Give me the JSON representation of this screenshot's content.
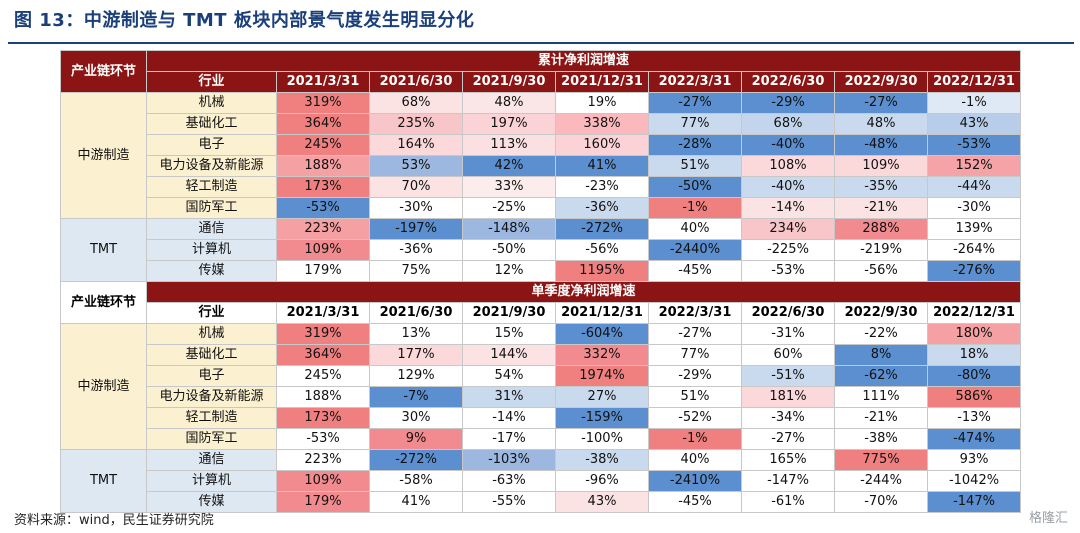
{
  "title": "图 13：中游制造与 TMT 板块内部景气度发生明显分化",
  "source": "资料来源：wind，民生证券研究院",
  "watermark": "格隆汇",
  "colors": {
    "header": "#8b1414",
    "title": "#1a3f7a",
    "mid_group": "#fbf0cf",
    "tmt_group": "#dde8f3"
  },
  "sections": [
    {
      "header": "累计净利润增速",
      "chain_label": "产业链环节",
      "industry_label": "行业",
      "dates": [
        "2021/3/31",
        "2021/6/30",
        "2021/9/30",
        "2021/12/31",
        "2022/3/31",
        "2022/6/30",
        "2022/9/30",
        "2022/12/31"
      ],
      "groups": [
        {
          "name": "中游制造",
          "rows": [
            {
              "industry": "机械",
              "values": [
                "319%",
                "68%",
                "48%",
                "19%",
                "-27%",
                "-29%",
                "-27%",
                "-1%"
              ]
            },
            {
              "industry": "基础化工",
              "values": [
                "364%",
                "235%",
                "197%",
                "338%",
                "77%",
                "68%",
                "48%",
                "43%"
              ]
            },
            {
              "industry": "电子",
              "values": [
                "245%",
                "164%",
                "113%",
                "160%",
                "-28%",
                "-40%",
                "-48%",
                "-53%"
              ]
            },
            {
              "industry": "电力设备及新能源",
              "values": [
                "188%",
                "53%",
                "42%",
                "41%",
                "51%",
                "108%",
                "109%",
                "152%"
              ]
            },
            {
              "industry": "轻工制造",
              "values": [
                "173%",
                "70%",
                "33%",
                "-23%",
                "-50%",
                "-40%",
                "-35%",
                "-44%"
              ]
            },
            {
              "industry": "国防军工",
              "values": [
                "-53%",
                "-30%",
                "-25%",
                "-36%",
                "-1%",
                "-14%",
                "-21%",
                "-30%"
              ]
            }
          ]
        },
        {
          "name": "TMT",
          "rows": [
            {
              "industry": "通信",
              "values": [
                "223%",
                "-197%",
                "-148%",
                "-272%",
                "40%",
                "234%",
                "288%",
                "139%"
              ]
            },
            {
              "industry": "计算机",
              "values": [
                "109%",
                "-36%",
                "-50%",
                "-56%",
                "-2440%",
                "-225%",
                "-219%",
                "-264%"
              ]
            },
            {
              "industry": "传媒",
              "values": [
                "179%",
                "75%",
                "12%",
                "1195%",
                "-45%",
                "-53%",
                "-56%",
                "-276%"
              ]
            }
          ]
        }
      ]
    },
    {
      "header": "单季度净利润增速",
      "chain_label": "产业链环节",
      "industry_label": "行业",
      "dates": [
        "2021/3/31",
        "2021/6/30",
        "2021/9/30",
        "2021/12/31",
        "2022/3/31",
        "2022/6/30",
        "2022/9/30",
        "2022/12/31"
      ],
      "groups": [
        {
          "name": "中游制造",
          "rows": [
            {
              "industry": "机械",
              "values": [
                "319%",
                "13%",
                "15%",
                "-604%",
                "-27%",
                "-31%",
                "-22%",
                "180%"
              ]
            },
            {
              "industry": "基础化工",
              "values": [
                "364%",
                "177%",
                "144%",
                "332%",
                "77%",
                "60%",
                "8%",
                "18%"
              ]
            },
            {
              "industry": "电子",
              "values": [
                "245%",
                "129%",
                "54%",
                "1974%",
                "-29%",
                "-51%",
                "-62%",
                "-80%"
              ]
            },
            {
              "industry": "电力设备及新能源",
              "values": [
                "188%",
                "-7%",
                "31%",
                "27%",
                "51%",
                "181%",
                "111%",
                "586%"
              ]
            },
            {
              "industry": "轻工制造",
              "values": [
                "173%",
                "30%",
                "-14%",
                "-159%",
                "-52%",
                "-34%",
                "-21%",
                "-13%"
              ]
            },
            {
              "industry": "国防军工",
              "values": [
                "-53%",
                "9%",
                "-17%",
                "-100%",
                "-1%",
                "-27%",
                "-38%",
                "-474%"
              ]
            }
          ]
        },
        {
          "name": "TMT",
          "rows": [
            {
              "industry": "通信",
              "values": [
                "223%",
                "-272%",
                "-103%",
                "-38%",
                "40%",
                "165%",
                "775%",
                "93%"
              ]
            },
            {
              "industry": "计算机",
              "values": [
                "109%",
                "-58%",
                "-63%",
                "-96%",
                "-2410%",
                "-147%",
                "-244%",
                "-1042%"
              ]
            },
            {
              "industry": "传媒",
              "values": [
                "179%",
                "41%",
                "-55%",
                "43%",
                "-45%",
                "-61%",
                "-70%",
                "-147%"
              ]
            }
          ]
        }
      ]
    }
  ],
  "cell_colors": [
    [
      [
        "#f08080",
        "#fbe3e4",
        "#fbe6e7",
        "#ffffff",
        "#5b8fd0",
        "#5b8fd0",
        "#5b8fd0",
        "#dfe8f5"
      ],
      [
        "#f08080",
        "#f8c6c9",
        "#fbd3d6",
        "#fbb9bd",
        "#c9daef",
        "#c2d5ec",
        "#c9daef",
        "#b7cde9"
      ],
      [
        "#f08080",
        "#fbd8da",
        "#fbe0e2",
        "#fbd3d6",
        "#5b8fd0",
        "#5b8fd0",
        "#5b8fd0",
        "#5b8fd0"
      ],
      [
        "#f5a0a3",
        "#9db8e0",
        "#5b8fd0",
        "#5b8fd0",
        "#c9daef",
        "#fbd8da",
        "#fbd8da",
        "#f5a3a7"
      ],
      [
        "#f08080",
        "#fbe3e4",
        "#fdecec",
        "#ffffff",
        "#5b8fd0",
        "#c9daef",
        "#c9daef",
        "#c9daef"
      ],
      [
        "#5b8fd0",
        "#ffffff",
        "#ffffff",
        "#c9daef",
        "#f08080",
        "#fbe3e4",
        "#fbe3e4",
        "#ffffff"
      ]
    ],
    [
      [
        "#f08080",
        "#ffffff",
        "#ffffff",
        "#5b8fd0",
        "#ffffff",
        "#ffffff",
        "#ffffff",
        "#f5a0a3"
      ],
      [
        "#f08080",
        "#fbd8da",
        "#fbe3e4",
        "#f28b8f",
        "#ffffff",
        "#ffffff",
        "#5b8fd0",
        "#c9daef"
      ],
      [
        "#ffffff",
        "#ffffff",
        "#ffffff",
        "#f08080",
        "#ffffff",
        "#c9daef",
        "#5b8fd0",
        "#5b8fd0"
      ],
      [
        "#ffffff",
        "#5b8fd0",
        "#c9daef",
        "#c9daef",
        "#ffffff",
        "#fbd8da",
        "#ffffff",
        "#f08080"
      ],
      [
        "#f08080",
        "#ffffff",
        "#ffffff",
        "#5b8fd0",
        "#ffffff",
        "#ffffff",
        "#ffffff",
        "#ffffff"
      ],
      [
        "#ffffff",
        "#f28b8f",
        "#ffffff",
        "#ffffff",
        "#f08080",
        "#ffffff",
        "#ffffff",
        "#5b8fd0"
      ]
    ]
  ],
  "tmt_colors": [
    [
      [
        "#f5a0a3",
        "#5b8fd0",
        "#9db8e0",
        "#5b8fd0",
        "#ffffff",
        "#f8c6c9",
        "#f28b8f",
        "#ffffff"
      ],
      [
        "#f28b8f",
        "#ffffff",
        "#ffffff",
        "#ffffff",
        "#5b8fd0",
        "#ffffff",
        "#ffffff",
        "#ffffff"
      ],
      [
        "#ffffff",
        "#ffffff",
        "#ffffff",
        "#f08080",
        "#ffffff",
        "#ffffff",
        "#ffffff",
        "#5b8fd0"
      ]
    ],
    [
      [
        "#ffffff",
        "#5b8fd0",
        "#9db8e0",
        "#c9daef",
        "#ffffff",
        "#ffffff",
        "#f08080",
        "#ffffff"
      ],
      [
        "#f28b8f",
        "#ffffff",
        "#ffffff",
        "#ffffff",
        "#5b8fd0",
        "#ffffff",
        "#ffffff",
        "#ffffff"
      ],
      [
        "#f28b8f",
        "#ffffff",
        "#ffffff",
        "#fbe3e4",
        "#ffffff",
        "#ffffff",
        "#ffffff",
        "#5b8fd0"
      ]
    ]
  ]
}
